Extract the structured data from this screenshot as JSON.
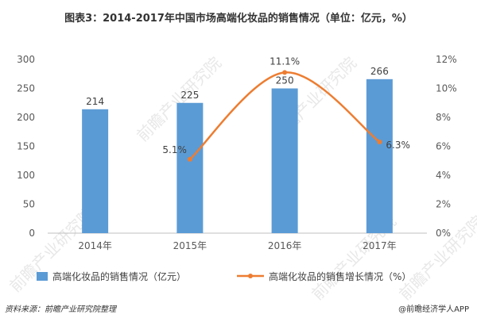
{
  "chart_data": {
    "type": "bar",
    "title": "图表3：2014-2017年中国市场高端化妆品的销售情况（单位：亿元，%）",
    "categories": [
      "2014年",
      "2015年",
      "2016年",
      "2017年"
    ],
    "series": [
      {
        "name": "高端化妆品的销售情况（亿元）",
        "type": "bar",
        "axis": "left",
        "values": [
          214,
          225,
          250,
          266
        ],
        "color": "#5b9bd5"
      },
      {
        "name": "高端化妆品的销售增长情况（%）",
        "type": "line",
        "axis": "right",
        "values": [
          null,
          5.1,
          11.1,
          6.3
        ],
        "color": "#ed7d31"
      }
    ],
    "y_left": {
      "lim": [
        0,
        300
      ],
      "ticks": [
        "0",
        "50",
        "100",
        "150",
        "200",
        "250",
        "300"
      ]
    },
    "y_right": {
      "lim": [
        0,
        12
      ],
      "ticks": [
        "0%",
        "2%",
        "4%",
        "6%",
        "8%",
        "10%",
        "12%"
      ]
    },
    "bar_labels": [
      "214",
      "225",
      "250",
      "266"
    ],
    "line_labels": [
      null,
      "5.1%",
      "11.1%",
      "6.3%"
    ],
    "legend_position": "bottom",
    "grid": false
  },
  "footer": {
    "source": "资料来源：前瞻产业研究院整理",
    "credit": "@前瞻经济学人APP"
  },
  "watermark": "前瞻产业研究院"
}
